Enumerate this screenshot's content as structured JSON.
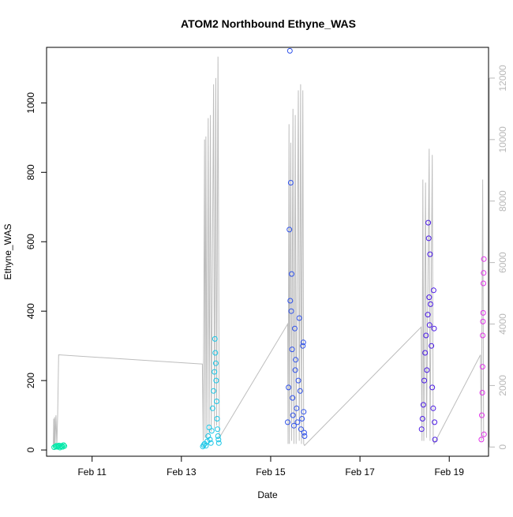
{
  "chart_data": {
    "type": "scatter",
    "title": "ATOM2 Northbound Ethyne_WAS",
    "xlabel": "Date",
    "ylabel": "Ethyne_WAS",
    "x_ticks": [
      "Feb 11",
      "Feb 13",
      "Feb 15",
      "Feb 17",
      "Feb 19"
    ],
    "x_range_days": [
      9.98,
      19.88
    ],
    "ylim_left": [
      -18,
      1160
    ],
    "ylim_right": [
      -300,
      13000
    ],
    "y_ticks_left": [
      "0",
      "200",
      "400",
      "600",
      "800",
      "1000"
    ],
    "y_ticks_right": [
      "0",
      "2000",
      "4000",
      "6000",
      "8000",
      "10000",
      "12000"
    ],
    "right_axis_color": "#b8b8b8",
    "line_series_color": "#bdbdbd",
    "points": [
      {
        "d": 10.15,
        "v": 8,
        "c": "#00e8a8"
      },
      {
        "d": 10.18,
        "v": 10,
        "c": "#00e8a8"
      },
      {
        "d": 10.2,
        "v": 12,
        "c": "#00e8a8"
      },
      {
        "d": 10.22,
        "v": 9,
        "c": "#00e8a8"
      },
      {
        "d": 10.24,
        "v": 11,
        "c": "#00e8a8"
      },
      {
        "d": 10.26,
        "v": 13,
        "c": "#00e8a8"
      },
      {
        "d": 10.28,
        "v": 7,
        "c": "#00e8a8"
      },
      {
        "d": 10.3,
        "v": 10,
        "c": "#00e8a8"
      },
      {
        "d": 10.32,
        "v": 12,
        "c": "#00e8a8"
      },
      {
        "d": 10.34,
        "v": 9,
        "c": "#00e8a8"
      },
      {
        "d": 10.36,
        "v": 14,
        "c": "#00e8a8"
      },
      {
        "d": 10.38,
        "v": 11,
        "c": "#00e8a8"
      },
      {
        "d": 13.48,
        "v": 10,
        "c": "#19c6e6"
      },
      {
        "d": 13.5,
        "v": 14,
        "c": "#19c6e6"
      },
      {
        "d": 13.52,
        "v": 18,
        "c": "#19c6e6"
      },
      {
        "d": 13.55,
        "v": 12,
        "c": "#19c6e6"
      },
      {
        "d": 13.58,
        "v": 25,
        "c": "#19c6e6"
      },
      {
        "d": 13.6,
        "v": 40,
        "c": "#19c6e6"
      },
      {
        "d": 13.62,
        "v": 65,
        "c": "#19c6e6"
      },
      {
        "d": 13.64,
        "v": 30,
        "c": "#19c6e6"
      },
      {
        "d": 13.66,
        "v": 20,
        "c": "#19c6e6"
      },
      {
        "d": 13.68,
        "v": 55,
        "c": "#19c6e6"
      },
      {
        "d": 13.7,
        "v": 120,
        "c": "#19c6e6"
      },
      {
        "d": 13.72,
        "v": 170,
        "c": "#19c6e6"
      },
      {
        "d": 13.74,
        "v": 225,
        "c": "#19c6e6"
      },
      {
        "d": 13.75,
        "v": 320,
        "c": "#19c6e6"
      },
      {
        "d": 13.76,
        "v": 280,
        "c": "#19c6e6"
      },
      {
        "d": 13.77,
        "v": 250,
        "c": "#19c6e6"
      },
      {
        "d": 13.78,
        "v": 200,
        "c": "#19c6e6"
      },
      {
        "d": 13.79,
        "v": 140,
        "c": "#19c6e6"
      },
      {
        "d": 13.8,
        "v": 90,
        "c": "#19c6e6"
      },
      {
        "d": 13.81,
        "v": 60,
        "c": "#19c6e6"
      },
      {
        "d": 13.82,
        "v": 40,
        "c": "#19c6e6"
      },
      {
        "d": 13.83,
        "v": 30,
        "c": "#19c6e6"
      },
      {
        "d": 13.84,
        "v": 20,
        "c": "#19c6e6"
      },
      {
        "d": 15.38,
        "v": 80,
        "c": "#2f52ea"
      },
      {
        "d": 15.4,
        "v": 180,
        "c": "#2f52ea"
      },
      {
        "d": 15.42,
        "v": 635,
        "c": "#2f52ea"
      },
      {
        "d": 15.43,
        "v": 1150,
        "c": "#2f52ea"
      },
      {
        "d": 15.44,
        "v": 430,
        "c": "#2f52ea"
      },
      {
        "d": 15.45,
        "v": 770,
        "c": "#2f52ea"
      },
      {
        "d": 15.46,
        "v": 400,
        "c": "#2f52ea"
      },
      {
        "d": 15.47,
        "v": 507,
        "c": "#2f52ea"
      },
      {
        "d": 15.48,
        "v": 290,
        "c": "#2f52ea"
      },
      {
        "d": 15.49,
        "v": 150,
        "c": "#2f52ea"
      },
      {
        "d": 15.5,
        "v": 100,
        "c": "#2f52ea"
      },
      {
        "d": 15.52,
        "v": 70,
        "c": "#2f52ea"
      },
      {
        "d": 15.54,
        "v": 350,
        "c": "#2f52ea"
      },
      {
        "d": 15.55,
        "v": 230,
        "c": "#2f52ea"
      },
      {
        "d": 15.56,
        "v": 260,
        "c": "#2f52ea"
      },
      {
        "d": 15.58,
        "v": 120,
        "c": "#2f52ea"
      },
      {
        "d": 15.6,
        "v": 80,
        "c": "#2f52ea"
      },
      {
        "d": 15.62,
        "v": 200,
        "c": "#2f52ea"
      },
      {
        "d": 15.64,
        "v": 380,
        "c": "#2f52ea"
      },
      {
        "d": 15.66,
        "v": 170,
        "c": "#2f52ea"
      },
      {
        "d": 15.68,
        "v": 60,
        "c": "#2f52ea"
      },
      {
        "d": 15.7,
        "v": 90,
        "c": "#2f52ea"
      },
      {
        "d": 15.72,
        "v": 300,
        "c": "#2f52ea"
      },
      {
        "d": 15.73,
        "v": 310,
        "c": "#2f52ea"
      },
      {
        "d": 15.74,
        "v": 110,
        "c": "#2f52ea"
      },
      {
        "d": 15.75,
        "v": 50,
        "c": "#2f52ea"
      },
      {
        "d": 15.76,
        "v": 40,
        "c": "#2f52ea"
      },
      {
        "d": 18.38,
        "v": 60,
        "c": "#4a1ae6"
      },
      {
        "d": 18.4,
        "v": 90,
        "c": "#4a1ae6"
      },
      {
        "d": 18.42,
        "v": 130,
        "c": "#4a1ae6"
      },
      {
        "d": 18.44,
        "v": 200,
        "c": "#4a1ae6"
      },
      {
        "d": 18.46,
        "v": 280,
        "c": "#4a1ae6"
      },
      {
        "d": 18.48,
        "v": 330,
        "c": "#4a1ae6"
      },
      {
        "d": 18.5,
        "v": 230,
        "c": "#4a1ae6"
      },
      {
        "d": 18.52,
        "v": 390,
        "c": "#4a1ae6"
      },
      {
        "d": 18.53,
        "v": 655,
        "c": "#4a1ae6"
      },
      {
        "d": 18.54,
        "v": 610,
        "c": "#4a1ae6"
      },
      {
        "d": 18.55,
        "v": 440,
        "c": "#4a1ae6"
      },
      {
        "d": 18.56,
        "v": 360,
        "c": "#4a1ae6"
      },
      {
        "d": 18.57,
        "v": 564,
        "c": "#4a1ae6"
      },
      {
        "d": 18.58,
        "v": 420,
        "c": "#4a1ae6"
      },
      {
        "d": 18.6,
        "v": 300,
        "c": "#4a1ae6"
      },
      {
        "d": 18.62,
        "v": 180,
        "c": "#4a1ae6"
      },
      {
        "d": 18.64,
        "v": 120,
        "c": "#4a1ae6"
      },
      {
        "d": 18.65,
        "v": 460,
        "c": "#4a1ae6"
      },
      {
        "d": 18.66,
        "v": 350,
        "c": "#4a1ae6"
      },
      {
        "d": 18.67,
        "v": 80,
        "c": "#4a1ae6"
      },
      {
        "d": 18.68,
        "v": 30,
        "c": "#4a1ae6"
      },
      {
        "d": 19.72,
        "v": 30,
        "c": "#e030e8"
      },
      {
        "d": 19.73,
        "v": 100,
        "c": "#e030e8"
      },
      {
        "d": 19.74,
        "v": 165,
        "c": "#e030e8"
      },
      {
        "d": 19.745,
        "v": 240,
        "c": "#e030e8"
      },
      {
        "d": 19.75,
        "v": 330,
        "c": "#e030e8"
      },
      {
        "d": 19.755,
        "v": 370,
        "c": "#e030e8"
      },
      {
        "d": 19.76,
        "v": 395,
        "c": "#e030e8"
      },
      {
        "d": 19.765,
        "v": 480,
        "c": "#e030e8"
      },
      {
        "d": 19.77,
        "v": 510,
        "c": "#e030e8"
      },
      {
        "d": 19.775,
        "v": 550,
        "c": "#e030e8"
      },
      {
        "d": 19.78,
        "v": 45,
        "c": "#e030e8"
      }
    ],
    "line_series": [
      [
        10.13,
        10
      ],
      [
        10.14,
        920
      ],
      [
        10.15,
        50
      ],
      [
        10.16,
        970
      ],
      [
        10.17,
        50
      ],
      [
        10.19,
        1030
      ],
      [
        10.21,
        50
      ],
      [
        10.23,
        1095
      ],
      [
        10.25,
        3000
      ],
      [
        13.47,
        2700
      ],
      [
        13.49,
        200
      ],
      [
        13.52,
        10000
      ],
      [
        13.53,
        300
      ],
      [
        13.55,
        10100
      ],
      [
        13.57,
        300
      ],
      [
        13.6,
        10700
      ],
      [
        13.62,
        400
      ],
      [
        13.65,
        10800
      ],
      [
        13.67,
        500
      ],
      [
        13.72,
        11800
      ],
      [
        13.74,
        600
      ],
      [
        13.77,
        12000
      ],
      [
        13.79,
        700
      ],
      [
        13.82,
        12700
      ],
      [
        13.85,
        300
      ],
      [
        15.38,
        4000
      ],
      [
        15.39,
        100
      ],
      [
        15.41,
        10500
      ],
      [
        15.42,
        100
      ],
      [
        15.45,
        9900
      ],
      [
        15.47,
        200
      ],
      [
        15.5,
        11000
      ],
      [
        15.52,
        100
      ],
      [
        15.55,
        10800
      ],
      [
        15.57,
        100
      ],
      [
        15.62,
        11600
      ],
      [
        15.64,
        200
      ],
      [
        15.67,
        11800
      ],
      [
        15.69,
        100
      ],
      [
        15.72,
        11600
      ],
      [
        15.74,
        100
      ],
      [
        15.76,
        50
      ],
      [
        18.37,
        3900
      ],
      [
        18.39,
        200
      ],
      [
        18.41,
        8700
      ],
      [
        18.43,
        200
      ],
      [
        18.47,
        8600
      ],
      [
        18.49,
        300
      ],
      [
        18.55,
        9700
      ],
      [
        18.57,
        200
      ],
      [
        18.62,
        9500
      ],
      [
        18.64,
        300
      ],
      [
        18.66,
        100
      ],
      [
        19.7,
        3000
      ],
      [
        19.72,
        200
      ],
      [
        19.75,
        8700
      ],
      [
        19.77,
        300
      ]
    ]
  }
}
